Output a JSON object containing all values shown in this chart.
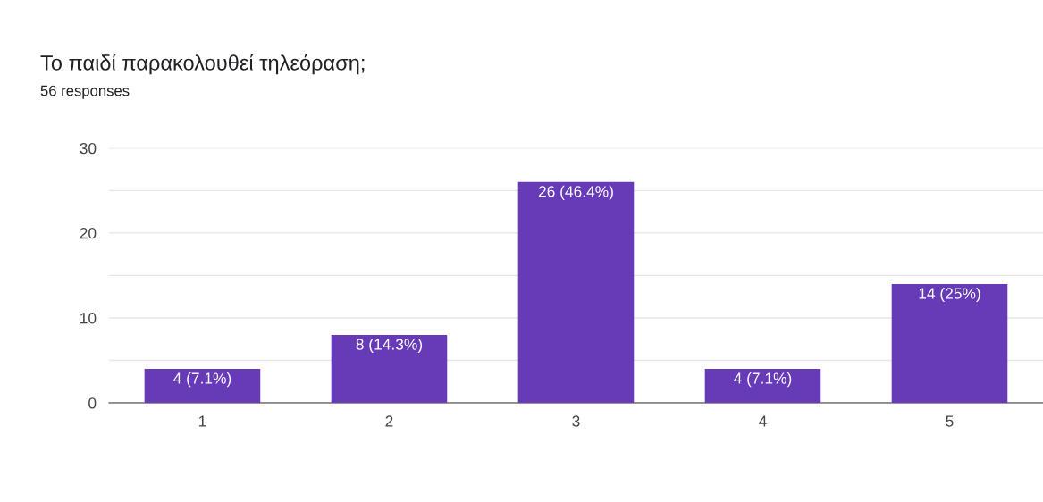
{
  "chart_data": {
    "type": "bar",
    "title": "Το παιδί παρακολουθεί τηλεόραση;",
    "subtitle": "56 responses",
    "categories": [
      "1",
      "2",
      "3",
      "4",
      "5"
    ],
    "values": [
      4,
      8,
      26,
      4,
      14
    ],
    "value_labels": [
      "4 (7.1%)",
      "8 (14.3%)",
      "26 (46.4%)",
      "4 (7.1%)",
      "14 (25%)"
    ],
    "color": "#673ab7",
    "ylim": [
      0,
      30
    ],
    "yticks": [
      0,
      {
        "value": 5,
        "label": null
      },
      10,
      {
        "value": 15,
        "label": null
      },
      20,
      {
        "value": 25,
        "label": null
      },
      30
    ],
    "grid": "y",
    "legend": false
  }
}
